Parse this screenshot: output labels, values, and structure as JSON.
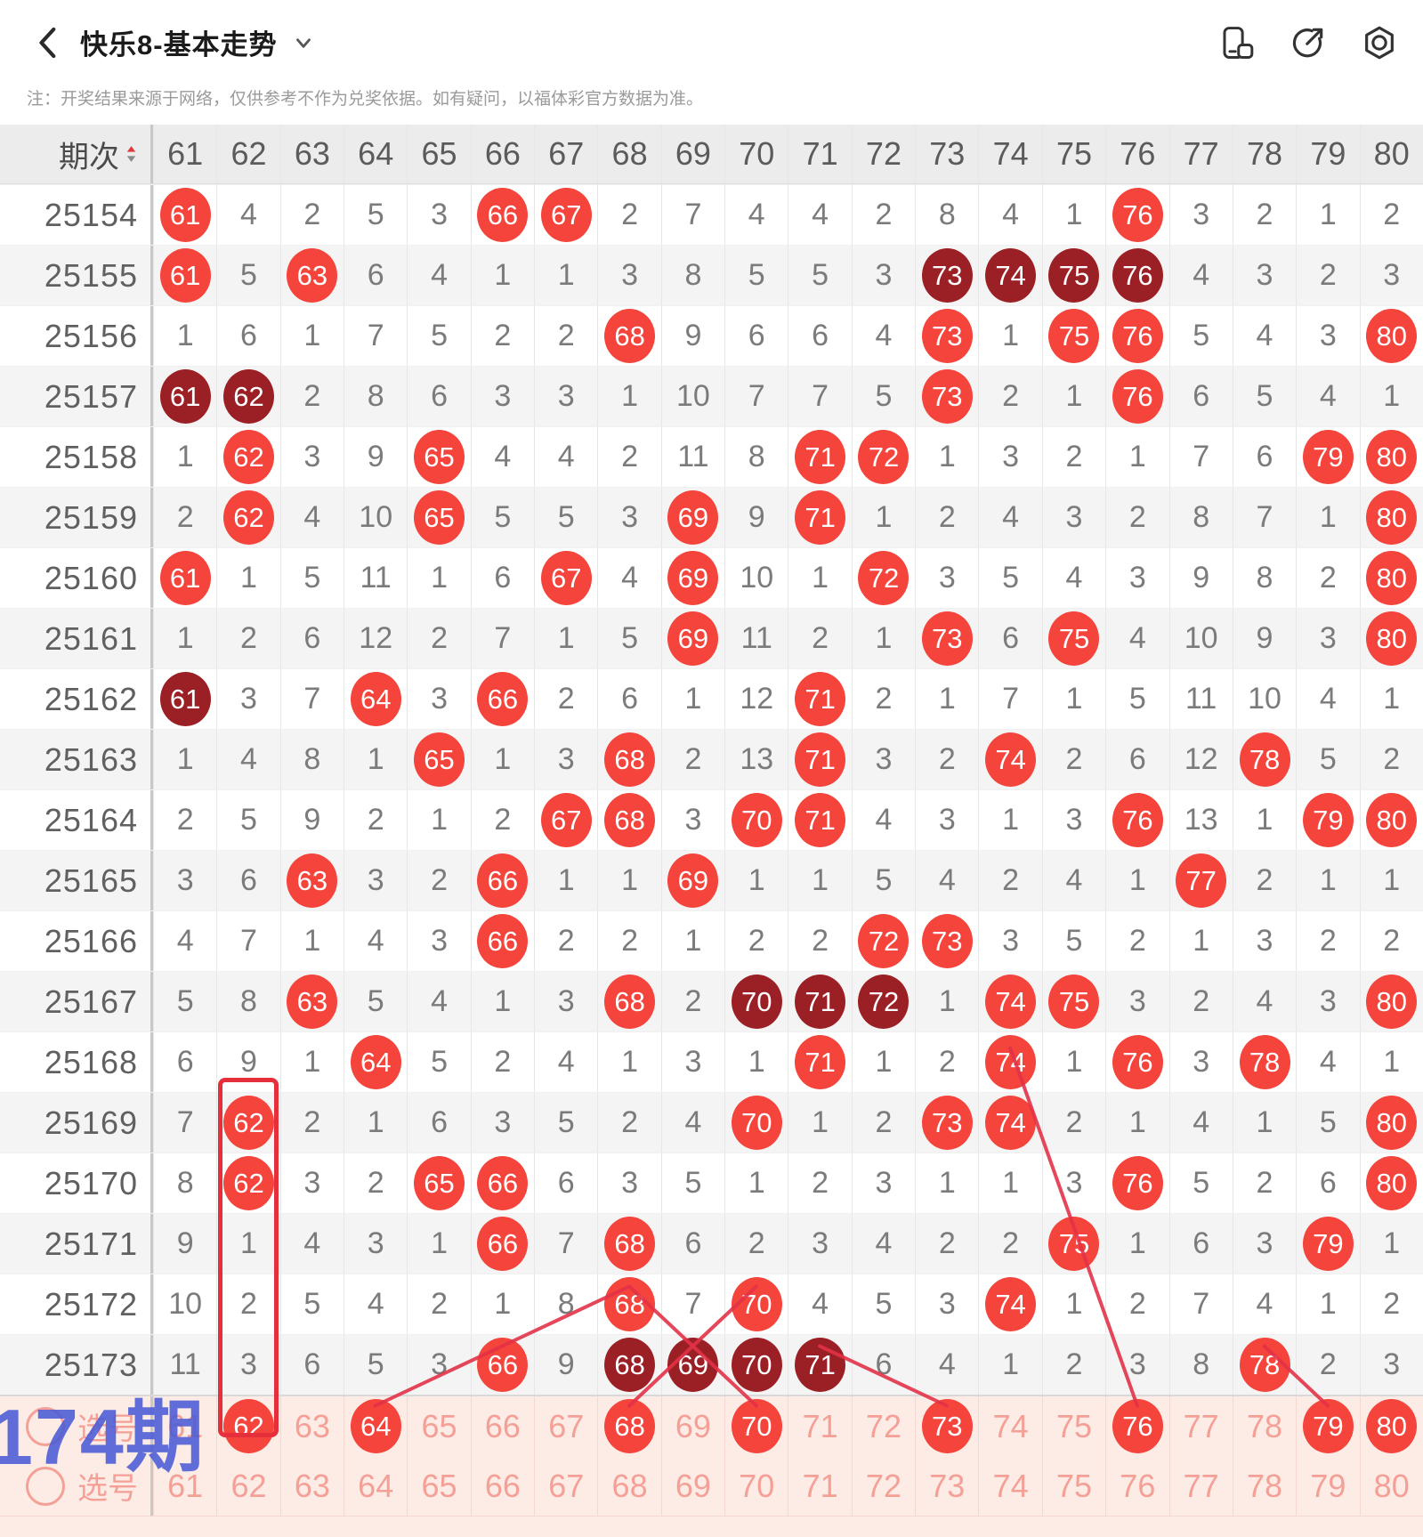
{
  "topbar": {
    "title": "快乐8-基本走势",
    "icons": [
      "rotate-screen-icon",
      "share-icon",
      "settings-icon"
    ]
  },
  "notice": "注：开奖结果来源于网络，仅供参考不作为兑奖依据。如有疑问，以福体彩官方数据为准。",
  "table": {
    "period_header": "期次",
    "columns": [
      "61",
      "62",
      "63",
      "64",
      "65",
      "66",
      "67",
      "68",
      "69",
      "70",
      "71",
      "72",
      "73",
      "74",
      "75",
      "76",
      "77",
      "78",
      "79",
      "80"
    ],
    "rows": [
      {
        "period": "25154",
        "cells": [
          "R61",
          "4",
          "2",
          "5",
          "3",
          "R66",
          "R67",
          "2",
          "7",
          "4",
          "4",
          "2",
          "8",
          "4",
          "1",
          "R76",
          "3",
          "2",
          "1",
          "2"
        ]
      },
      {
        "period": "25155",
        "cells": [
          "R61",
          "5",
          "R63",
          "6",
          "4",
          "1",
          "1",
          "3",
          "8",
          "5",
          "5",
          "3",
          "D73",
          "D74",
          "D75",
          "D76",
          "4",
          "3",
          "2",
          "3"
        ]
      },
      {
        "period": "25156",
        "cells": [
          "1",
          "6",
          "1",
          "7",
          "5",
          "2",
          "2",
          "R68",
          "9",
          "6",
          "6",
          "4",
          "R73",
          "1",
          "R75",
          "R76",
          "5",
          "4",
          "3",
          "R80"
        ]
      },
      {
        "period": "25157",
        "cells": [
          "D61",
          "D62",
          "2",
          "8",
          "6",
          "3",
          "3",
          "1",
          "10",
          "7",
          "7",
          "5",
          "R73",
          "2",
          "1",
          "R76",
          "6",
          "5",
          "4",
          "1"
        ]
      },
      {
        "period": "25158",
        "cells": [
          "1",
          "R62",
          "3",
          "9",
          "R65",
          "4",
          "4",
          "2",
          "11",
          "8",
          "R71",
          "R72",
          "1",
          "3",
          "2",
          "1",
          "7",
          "6",
          "R79",
          "R80"
        ]
      },
      {
        "period": "25159",
        "cells": [
          "2",
          "R62",
          "4",
          "10",
          "R65",
          "5",
          "5",
          "3",
          "R69",
          "9",
          "R71",
          "1",
          "2",
          "4",
          "3",
          "2",
          "8",
          "7",
          "1",
          "R80"
        ]
      },
      {
        "period": "25160",
        "cells": [
          "R61",
          "1",
          "5",
          "11",
          "1",
          "6",
          "R67",
          "4",
          "R69",
          "10",
          "1",
          "R72",
          "3",
          "5",
          "4",
          "3",
          "9",
          "8",
          "2",
          "R80"
        ]
      },
      {
        "period": "25161",
        "cells": [
          "1",
          "2",
          "6",
          "12",
          "2",
          "7",
          "1",
          "5",
          "R69",
          "11",
          "2",
          "1",
          "R73",
          "6",
          "R75",
          "4",
          "10",
          "9",
          "3",
          "R80"
        ]
      },
      {
        "period": "25162",
        "cells": [
          "D61",
          "3",
          "7",
          "R64",
          "3",
          "R66",
          "2",
          "6",
          "1",
          "12",
          "R71",
          "2",
          "1",
          "7",
          "1",
          "5",
          "11",
          "10",
          "4",
          "1"
        ]
      },
      {
        "period": "25163",
        "cells": [
          "1",
          "4",
          "8",
          "1",
          "R65",
          "1",
          "3",
          "R68",
          "2",
          "13",
          "R71",
          "3",
          "2",
          "R74",
          "2",
          "6",
          "12",
          "R78",
          "5",
          "2"
        ]
      },
      {
        "period": "25164",
        "cells": [
          "2",
          "5",
          "9",
          "2",
          "1",
          "2",
          "R67",
          "R68",
          "3",
          "R70",
          "R71",
          "4",
          "3",
          "1",
          "3",
          "R76",
          "13",
          "1",
          "R79",
          "R80"
        ]
      },
      {
        "period": "25165",
        "cells": [
          "3",
          "6",
          "R63",
          "3",
          "2",
          "R66",
          "1",
          "1",
          "R69",
          "1",
          "1",
          "5",
          "4",
          "2",
          "4",
          "1",
          "R77",
          "2",
          "1",
          "1"
        ]
      },
      {
        "period": "25166",
        "cells": [
          "4",
          "7",
          "1",
          "4",
          "3",
          "R66",
          "2",
          "2",
          "1",
          "2",
          "2",
          "R72",
          "R73",
          "3",
          "5",
          "2",
          "1",
          "3",
          "2",
          "2"
        ]
      },
      {
        "period": "25167",
        "cells": [
          "5",
          "8",
          "R63",
          "5",
          "4",
          "1",
          "3",
          "R68",
          "2",
          "D70",
          "D71",
          "D72",
          "1",
          "R74",
          "R75",
          "3",
          "2",
          "4",
          "3",
          "R80"
        ]
      },
      {
        "period": "25168",
        "cells": [
          "6",
          "9",
          "1",
          "R64",
          "5",
          "2",
          "4",
          "1",
          "3",
          "1",
          "R71",
          "1",
          "2",
          "R74",
          "1",
          "R76",
          "3",
          "R78",
          "4",
          "1"
        ]
      },
      {
        "period": "25169",
        "cells": [
          "7",
          "R62",
          "2",
          "1",
          "6",
          "3",
          "5",
          "2",
          "4",
          "R70",
          "1",
          "2",
          "R73",
          "R74",
          "2",
          "1",
          "4",
          "1",
          "5",
          "R80"
        ]
      },
      {
        "period": "25170",
        "cells": [
          "8",
          "R62",
          "3",
          "2",
          "R65",
          "R66",
          "6",
          "3",
          "5",
          "1",
          "2",
          "3",
          "1",
          "1",
          "3",
          "R76",
          "5",
          "2",
          "6",
          "R80"
        ]
      },
      {
        "period": "25171",
        "cells": [
          "9",
          "1",
          "4",
          "3",
          "1",
          "R66",
          "7",
          "R68",
          "6",
          "2",
          "3",
          "4",
          "2",
          "2",
          "R75",
          "1",
          "6",
          "3",
          "R79",
          "1"
        ]
      },
      {
        "period": "25172",
        "cells": [
          "10",
          "2",
          "5",
          "4",
          "2",
          "1",
          "8",
          "R68",
          "7",
          "R70",
          "4",
          "5",
          "3",
          "R74",
          "1",
          "2",
          "7",
          "4",
          "1",
          "2"
        ]
      },
      {
        "period": "25173",
        "cells": [
          "11",
          "3",
          "6",
          "5",
          "3",
          "R66",
          "9",
          "D68",
          "D69",
          "D70",
          "D71",
          "6",
          "4",
          "1",
          "2",
          "3",
          "8",
          "R78",
          "2",
          "3"
        ]
      }
    ],
    "prediction_row": {
      "label": "选号",
      "cells": [
        "61",
        "R62",
        "63",
        "R64",
        "65",
        "66",
        "67",
        "R68",
        "69",
        "R70",
        "71",
        "72",
        "R73",
        "74",
        "75",
        "R76",
        "77",
        "78",
        "R79",
        "R80"
      ]
    },
    "selection_row": {
      "label": "选号",
      "cells": [
        "61",
        "62",
        "63",
        "64",
        "65",
        "66",
        "67",
        "68",
        "69",
        "70",
        "71",
        "72",
        "73",
        "74",
        "75",
        "76",
        "77",
        "78",
        "79",
        "80"
      ]
    },
    "next_period_tag": "174期"
  },
  "annotations": {
    "highlight_box": {
      "column": 62,
      "from_row_index": 15
    },
    "trend_lines": [
      [
        [
          68,
          18
        ],
        [
          66,
          19
        ],
        [
          64,
          20
        ]
      ],
      [
        [
          70,
          18
        ],
        [
          69,
          19
        ],
        [
          68,
          20
        ]
      ],
      [
        [
          68,
          18
        ],
        [
          69,
          19
        ],
        [
          70,
          20
        ]
      ],
      [
        [
          71,
          19
        ],
        [
          73,
          20
        ]
      ],
      [
        [
          78,
          19
        ],
        [
          79,
          20
        ]
      ],
      [
        [
          74,
          14
        ],
        [
          76,
          20
        ]
      ]
    ]
  },
  "colors": {
    "hit": "#f4443b",
    "hit_dark": "#9b2025",
    "miss_text": "#7b7b7b",
    "trend_line": "#e23247",
    "highlight_box": "#e5303c",
    "pink_text": "#f5a097",
    "pink_bg": "#fdece6",
    "tag_blue": "#4b5bd6",
    "sort_up": "#e03b3b",
    "sort_down": "#8a8a8a"
  }
}
